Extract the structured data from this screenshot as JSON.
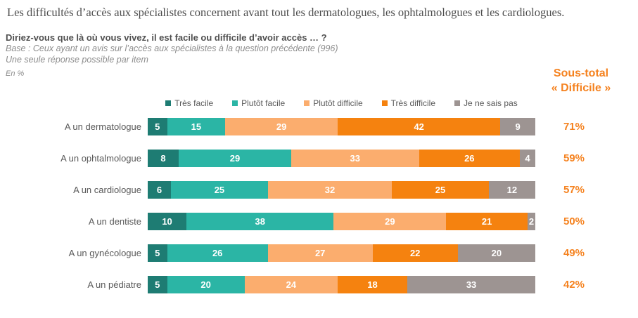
{
  "title": "Les difficultés d’accès aux spécialistes concernent avant tout les dermatologues, les ophtalmologues et les cardiologues.",
  "question": "Diriez-vous que là où vous vivez, il est facile ou difficile d’avoir accès … ?",
  "base_line1": "Base : Ceux ayant un avis sur l’accès aux spécialistes à la question précédente (996)",
  "base_line2": "Une seule réponse possible par item",
  "unit_label": "En %",
  "subtotal_header": {
    "line1": "Sous-total",
    "line2": "« Difficile »"
  },
  "colors": {
    "accent_orange": "#F5821F",
    "title_text": "#4d4d4d",
    "body_text": "#595959",
    "muted_text": "#8c8c8c"
  },
  "chart_data": {
    "type": "bar",
    "orientation": "horizontal",
    "stacked": true,
    "unit": "%",
    "xlim": [
      0,
      100
    ],
    "grid": false,
    "legend_position": "top-center",
    "categories": [
      "A un dermatologue",
      "A un ophtalmologue",
      "A un cardiologue",
      "A un dentiste",
      "A un gynécologue",
      "A un pédiatre"
    ],
    "series": [
      {
        "name": "Très facile",
        "color": "#1E7C73",
        "values": [
          5,
          8,
          6,
          10,
          5,
          5
        ]
      },
      {
        "name": "Plutôt facile",
        "color": "#2BB5A5",
        "values": [
          15,
          29,
          25,
          38,
          26,
          20
        ]
      },
      {
        "name": "Plutôt difficile",
        "color": "#FBAD6E",
        "values": [
          29,
          33,
          32,
          29,
          27,
          24
        ]
      },
      {
        "name": "Très difficile",
        "color": "#F5820F",
        "values": [
          42,
          26,
          25,
          21,
          22,
          18
        ]
      },
      {
        "name": "Je ne sais pas",
        "color": "#9D9492",
        "values": [
          9,
          4,
          12,
          2,
          20,
          33
        ]
      }
    ],
    "subtotals_difficile": [
      "71%",
      "59%",
      "57%",
      "50%",
      "49%",
      "42%"
    ]
  }
}
